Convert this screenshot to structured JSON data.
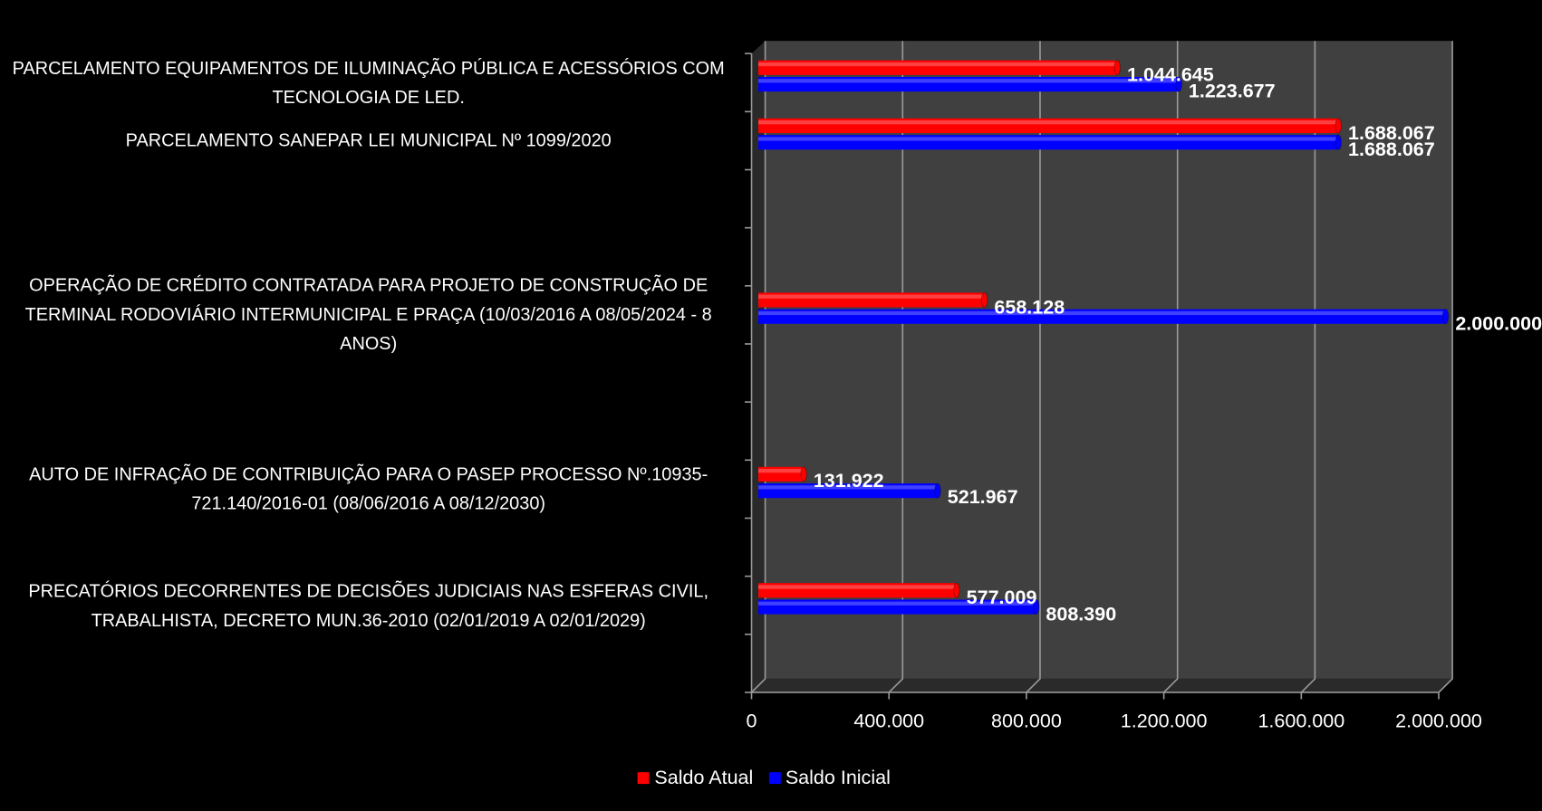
{
  "chart_data": {
    "type": "bar",
    "orientation": "horizontal",
    "categories": [
      "PARCELAMENTO EQUIPAMENTOS DE ILUMINAÇÃO PÚBLICA E ACESSÓRIOS COM TECNOLOGIA DE LED.",
      "PARCELAMENTO SANEPAR LEI MUNICIPAL Nº 1099/2020",
      null,
      null,
      "OPERAÇÃO DE CRÉDITO CONTRATADA PARA PROJETO DE CONSTRUÇÃO DE TERMINAL RODOVIÁRIO INTERMUNICIPAL E PRAÇA (10/03/2016 A 08/05/2024 - 8 ANOS)",
      null,
      null,
      "AUTO DE INFRAÇÃO DE CONTRIBUIÇÃO PARA O PASEP PROCESSO Nº.10935-721.140/2016-01 (08/06/2016 A 08/12/2030)",
      null,
      "PRECATÓRIOS DECORRENTES DE DECISÕES JUDICIAIS NAS ESFERAS CIVIL, TRABALHISTA, DECRETO MUN.36-2010 (02/01/2019 A 02/01/2029)",
      null
    ],
    "series": [
      {
        "name": "Saldo Atual",
        "color": "#ff0000",
        "values": [
          1044645,
          1688067,
          null,
          null,
          658128,
          null,
          null,
          131922,
          null,
          577009,
          null
        ],
        "value_labels": [
          "1.044.645",
          "1.688.067",
          null,
          null,
          "658.128",
          null,
          null,
          "131.922",
          null,
          "577.009",
          null
        ]
      },
      {
        "name": "Saldo Inicial",
        "color": "#0000ff",
        "values": [
          1223677,
          1688067,
          null,
          null,
          2000000,
          null,
          null,
          521967,
          null,
          808390,
          null
        ],
        "value_labels": [
          "1.223.677",
          "1.688.067",
          null,
          null,
          "2.000.000",
          null,
          null,
          "521.967",
          null,
          "808.390",
          null
        ]
      }
    ],
    "xlim": [
      0,
      2000000
    ],
    "xticks": [
      0,
      {
        "value": 400000,
        "label": "400.000"
      },
      {
        "value": 800000,
        "label": "800.000"
      },
      {
        "value": 1200000,
        "label": "1.200.000"
      },
      {
        "value": 1600000,
        "label": "1.600.000"
      },
      {
        "value": 2000000,
        "label": "2.000.000"
      }
    ],
    "grid": true,
    "legend": "bottom"
  }
}
